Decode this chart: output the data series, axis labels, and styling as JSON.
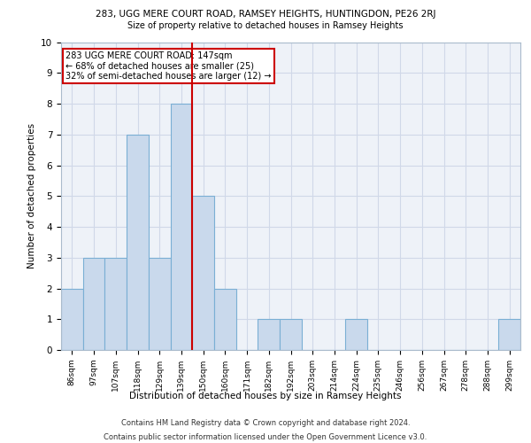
{
  "title_line1": "283, UGG MERE COURT ROAD, RAMSEY HEIGHTS, HUNTINGDON, PE26 2RJ",
  "title_line2": "Size of property relative to detached houses in Ramsey Heights",
  "xlabel": "Distribution of detached houses by size in Ramsey Heights",
  "ylabel": "Number of detached properties",
  "categories": [
    "86sqm",
    "97sqm",
    "107sqm",
    "118sqm",
    "129sqm",
    "139sqm",
    "150sqm",
    "160sqm",
    "171sqm",
    "182sqm",
    "192sqm",
    "203sqm",
    "214sqm",
    "224sqm",
    "235sqm",
    "246sqm",
    "256sqm",
    "267sqm",
    "278sqm",
    "288sqm",
    "299sqm"
  ],
  "values": [
    2,
    3,
    3,
    7,
    3,
    8,
    5,
    2,
    0,
    1,
    1,
    0,
    0,
    1,
    0,
    0,
    0,
    0,
    0,
    0,
    1
  ],
  "bar_color": "#c9d9ec",
  "bar_edge_color": "#7aafd4",
  "subject_line_index": 6,
  "subject_line_color": "#cc0000",
  "annotation_text": "283 UGG MERE COURT ROAD: 147sqm\n← 68% of detached houses are smaller (25)\n32% of semi-detached houses are larger (12) →",
  "annotation_box_color": "#ffffff",
  "annotation_box_edge": "#cc0000",
  "ylim": [
    0,
    10
  ],
  "yticks": [
    0,
    1,
    2,
    3,
    4,
    5,
    6,
    7,
    8,
    9,
    10
  ],
  "footer_line1": "Contains HM Land Registry data © Crown copyright and database right 2024.",
  "footer_line2": "Contains public sector information licensed under the Open Government Licence v3.0.",
  "grid_color": "#d0d8e8",
  "background_color": "#eef2f8",
  "fig_width": 6.0,
  "fig_height": 5.0,
  "dpi": 100
}
